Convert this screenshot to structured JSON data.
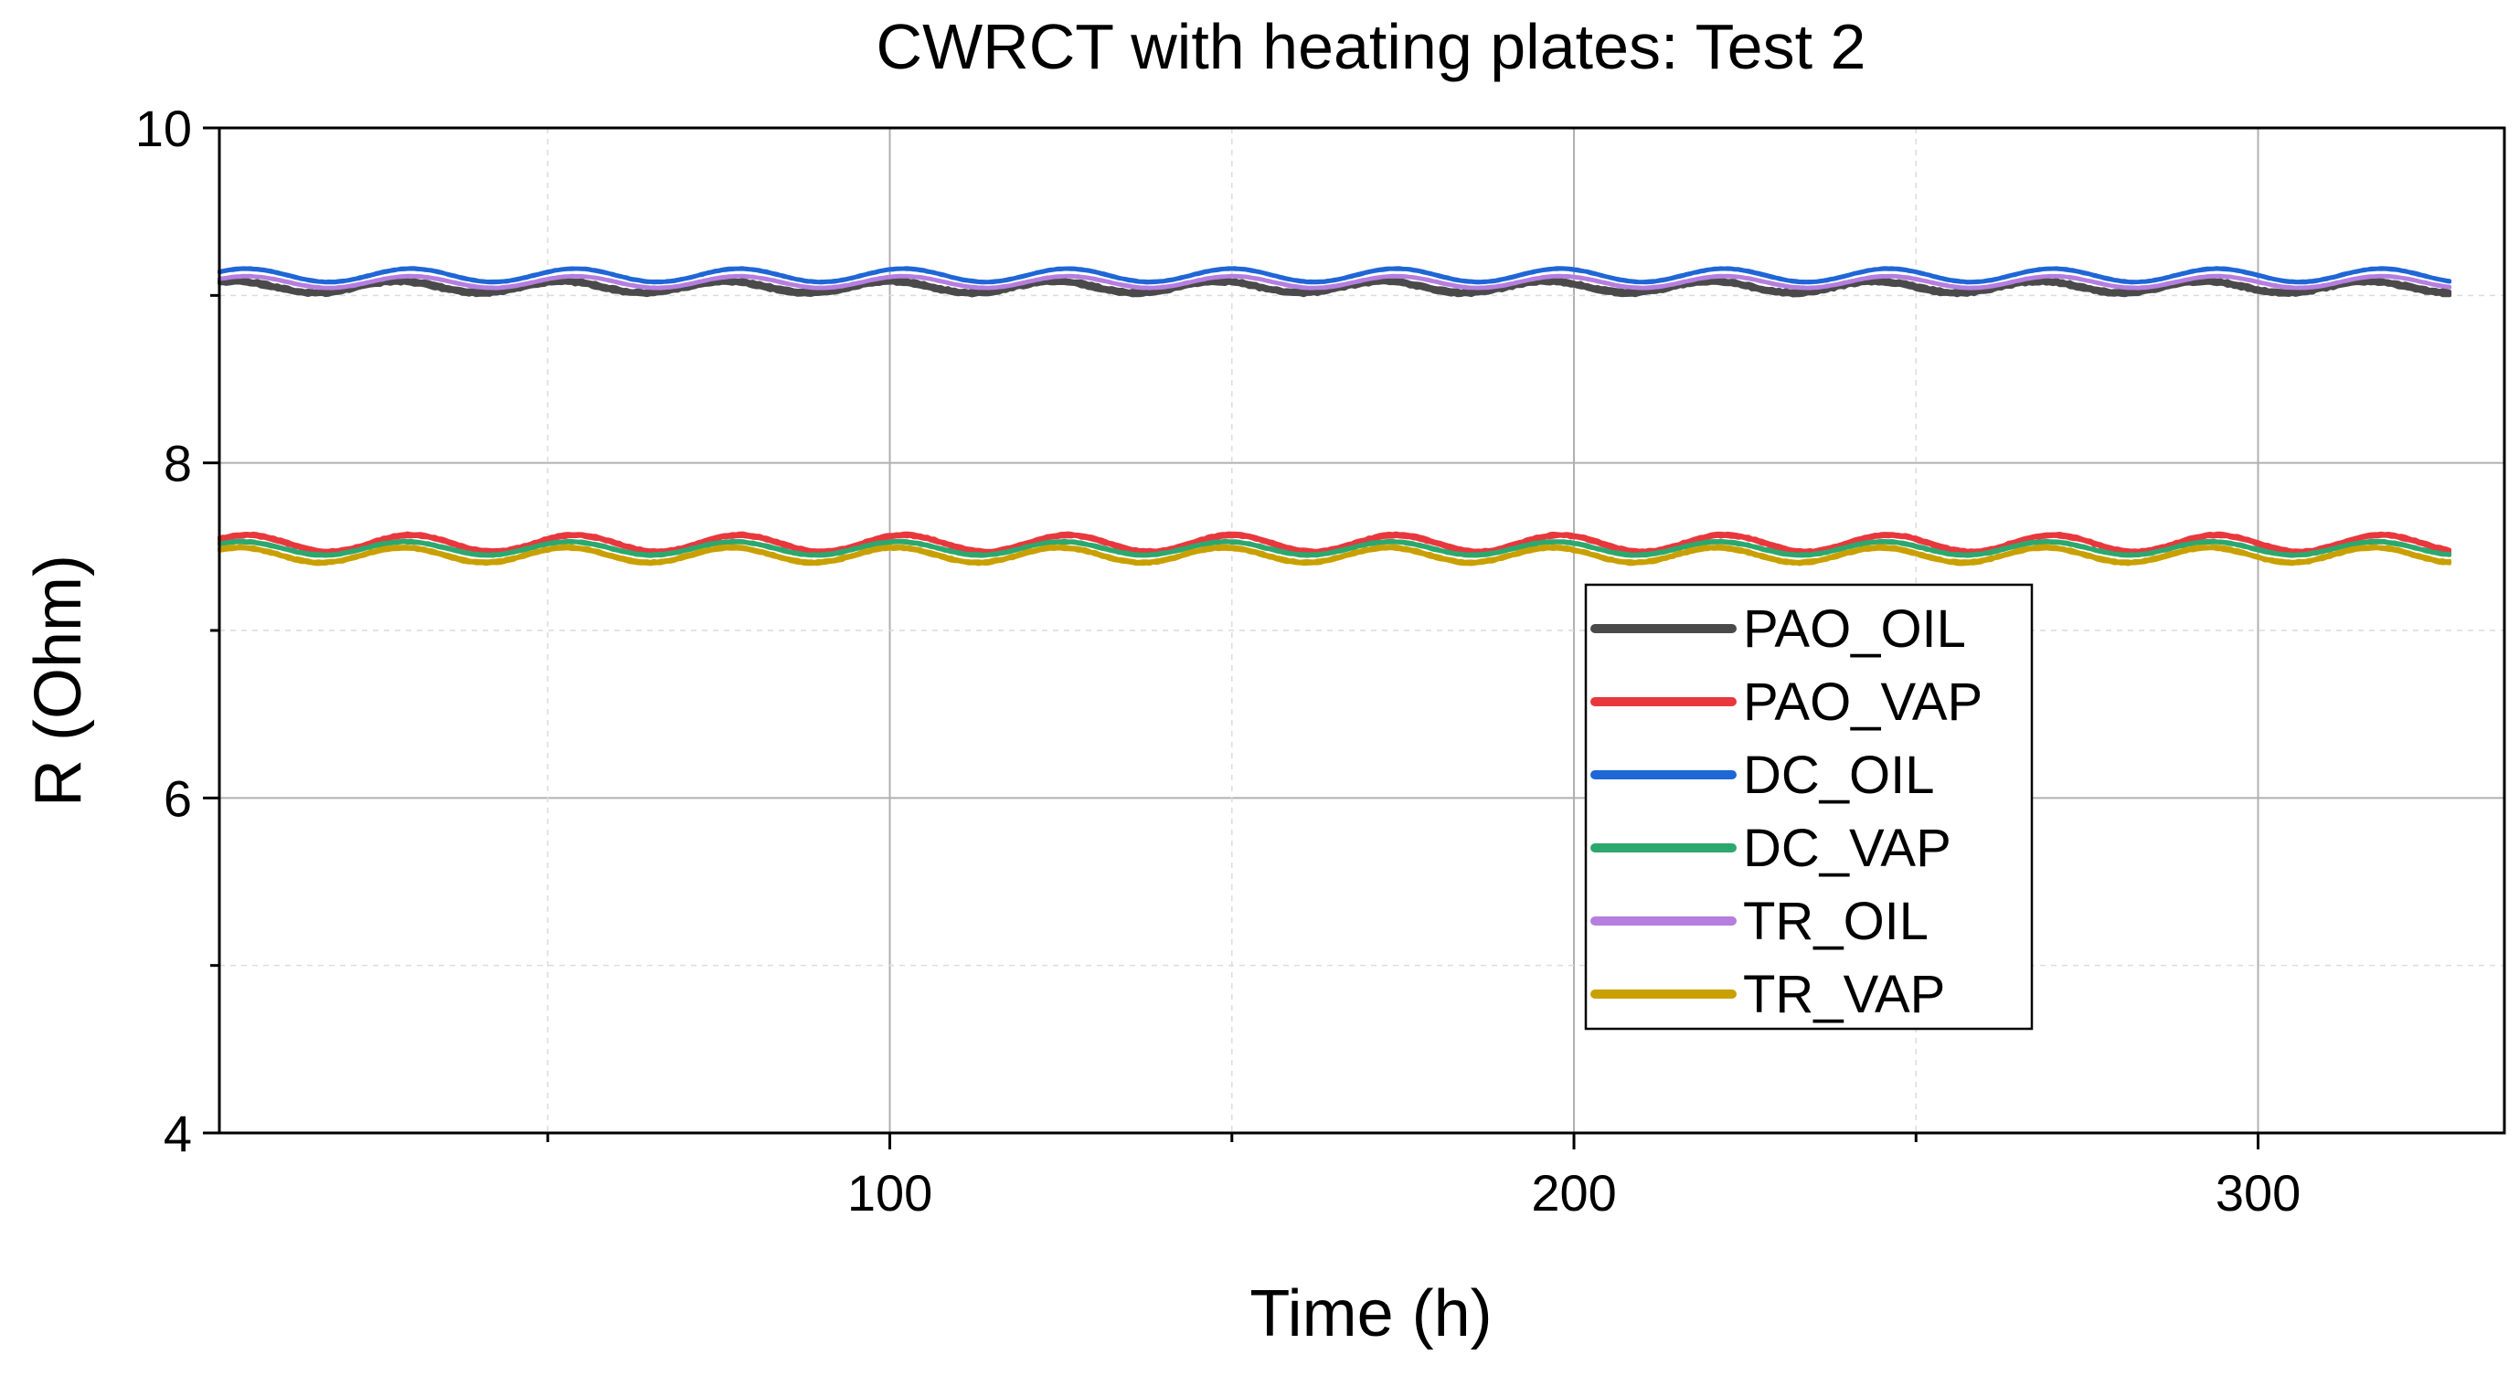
{
  "chart_data": {
    "type": "line",
    "title": "CWRCT with heating plates: Test 2",
    "xlabel": "Time (h)",
    "ylabel": "R (Ohm)",
    "xlim": [
      2,
      336
    ],
    "ylim": [
      4,
      10
    ],
    "x_ticks": [
      100,
      200,
      300
    ],
    "x_tick_labels": [
      "100",
      "200",
      "300"
    ],
    "y_ticks": [
      4,
      6,
      8,
      10
    ],
    "y_tick_labels": [
      "4",
      "6",
      "8",
      "10"
    ],
    "grid": true,
    "legend_position": "lower-right",
    "series": [
      {
        "name": "PAO_OIL",
        "color": "#4a4a4a",
        "x_range": [
          2,
          328
        ],
        "base": 9.05,
        "amp": 0.035,
        "period": 24,
        "phase": 0.5,
        "noise": 0.03,
        "trend": 0.0
      },
      {
        "name": "PAO_VAP",
        "color": "#e8383d",
        "x_range": [
          2,
          328
        ],
        "base": 7.52,
        "amp": 0.05,
        "period": 24,
        "phase": 0.0,
        "noise": 0.02,
        "trend": 0.0003
      },
      {
        "name": "DC_OIL",
        "color": "#1f66d6",
        "x_range": [
          2,
          328
        ],
        "base": 9.12,
        "amp": 0.04,
        "period": 24,
        "phase": 0.0,
        "noise": 0.008,
        "trend": 0.0002
      },
      {
        "name": "DC_VAP",
        "color": "#2ca86e",
        "x_range": [
          2,
          328
        ],
        "base": 7.49,
        "amp": 0.04,
        "period": 24,
        "phase": 0.2,
        "noise": 0.012,
        "trend": 0.0
      },
      {
        "name": "TR_OIL",
        "color": "#b57ee0",
        "x_range": [
          2,
          328
        ],
        "base": 9.08,
        "amp": 0.035,
        "period": 24,
        "phase": 0.0,
        "noise": 0.006,
        "trend": 0.0002
      },
      {
        "name": "TR_VAP",
        "color": "#c9a000",
        "x_range": [
          2,
          328
        ],
        "base": 7.45,
        "amp": 0.045,
        "period": 24,
        "phase": 0.3,
        "noise": 0.018,
        "trend": 0.0
      }
    ]
  }
}
